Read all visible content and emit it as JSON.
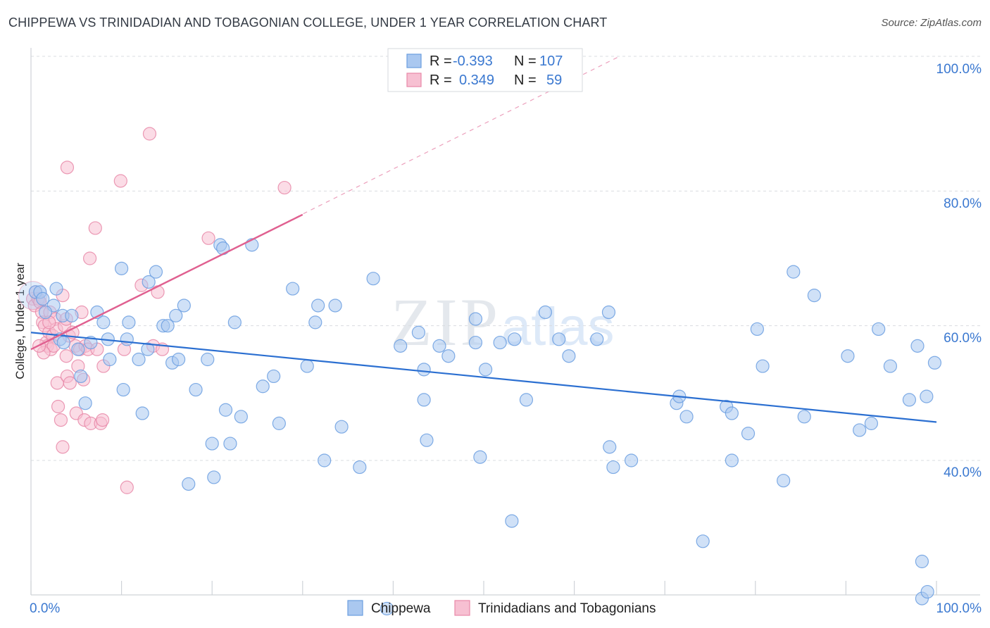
{
  "title": "CHIPPEWA VS TRINIDADIAN AND TOBAGONIAN COLLEGE, UNDER 1 YEAR CORRELATION CHART",
  "source": "Source: ZipAtlas.com",
  "watermark": {
    "zip": "ZIP",
    "atlas": "atlas"
  },
  "colors": {
    "blue": "#6a9ee0",
    "blue_fill": "#aac8f0",
    "blue_line": "#2b6fd1",
    "pink": "#e888a8",
    "pink_fill": "#f7c0d2",
    "pink_line": "#e06090",
    "accent_text": "#3a78d0"
  },
  "legend": {
    "rows": [
      {
        "r_label": "R =",
        "r_value": "-0.393",
        "n_label": "N =",
        "n_value": "107"
      },
      {
        "r_label": "R =",
        "r_value": "0.349",
        "n_label": "N =",
        "n_value": "59"
      }
    ]
  },
  "bottom_legend": [
    "Chippewa",
    "Trinidadians and Tobagonians"
  ],
  "chart_data": {
    "type": "scatter",
    "title": "CHIPPEWA VS TRINIDADIAN AND TOBAGONIAN COLLEGE, UNDER 1 YEAR CORRELATION CHART",
    "xlabel": "",
    "ylabel": "College, Under 1 year",
    "xlim": [
      0,
      100
    ],
    "ylim": [
      18,
      103
    ],
    "x_tick_labels": [
      "0.0%",
      "100.0%"
    ],
    "y_ticks": [
      40,
      60,
      80,
      100
    ],
    "y_tick_labels": [
      "40.0%",
      "60.0%",
      "80.0%",
      "100.0%"
    ],
    "grid": true,
    "series": [
      {
        "name": "Chippewa",
        "color": "blue",
        "trend": {
          "x": [
            0,
            100
          ],
          "y": [
            59.0,
            45.7
          ]
        },
        "points": [
          [
            0.5,
            65
          ],
          [
            1,
            65
          ],
          [
            1.3,
            64
          ],
          [
            2.5,
            63
          ],
          [
            2.8,
            65.5
          ],
          [
            3.2,
            58
          ],
          [
            3.5,
            61.5
          ],
          [
            4.5,
            61.5
          ],
          [
            5.2,
            56.5
          ],
          [
            5.5,
            52.5
          ],
          [
            6,
            48.5
          ],
          [
            6.6,
            57.5
          ],
          [
            7.3,
            62
          ],
          [
            8,
            60.5
          ],
          [
            8.5,
            58
          ],
          [
            8.7,
            55
          ],
          [
            10,
            68.5
          ],
          [
            10.2,
            50.5
          ],
          [
            10.6,
            58
          ],
          [
            10.8,
            60.5
          ],
          [
            11.9,
            55
          ],
          [
            12.3,
            47
          ],
          [
            12.9,
            56.5
          ],
          [
            13,
            66.5
          ],
          [
            13.8,
            68
          ],
          [
            14.6,
            60
          ],
          [
            15.1,
            60
          ],
          [
            15.6,
            54.5
          ],
          [
            16,
            61.5
          ],
          [
            16.3,
            55
          ],
          [
            16.9,
            63
          ],
          [
            17.4,
            36.5
          ],
          [
            18.2,
            50.5
          ],
          [
            19.5,
            55
          ],
          [
            20,
            42.5
          ],
          [
            20.2,
            37.5
          ],
          [
            20.9,
            72
          ],
          [
            21.2,
            71.5
          ],
          [
            21.5,
            47.5
          ],
          [
            22,
            42.5
          ],
          [
            22.5,
            60.5
          ],
          [
            23.2,
            46.5
          ],
          [
            24.4,
            72
          ],
          [
            25.6,
            51
          ],
          [
            26.8,
            52.5
          ],
          [
            27.4,
            45.5
          ],
          [
            28.9,
            65.5
          ],
          [
            30.5,
            54
          ],
          [
            31.4,
            60.5
          ],
          [
            31.7,
            63
          ],
          [
            32.4,
            40
          ],
          [
            33.6,
            63
          ],
          [
            34.3,
            45
          ],
          [
            36.3,
            39
          ],
          [
            37.8,
            67
          ],
          [
            39.3,
            18
          ],
          [
            40.8,
            57
          ],
          [
            42.8,
            59
          ],
          [
            43.4,
            49
          ],
          [
            43.4,
            53.5
          ],
          [
            43.7,
            43
          ],
          [
            45.1,
            57
          ],
          [
            46.1,
            55.5
          ],
          [
            49.1,
            61
          ],
          [
            49.1,
            57.5
          ],
          [
            49.6,
            40.5
          ],
          [
            50.2,
            53.5
          ],
          [
            51.8,
            57.5
          ],
          [
            53.1,
            31
          ],
          [
            53.4,
            58
          ],
          [
            54.7,
            49
          ],
          [
            56.8,
            62
          ],
          [
            58.3,
            58
          ],
          [
            59.4,
            55.5
          ],
          [
            62.5,
            58
          ],
          [
            63.8,
            62
          ],
          [
            63.9,
            42
          ],
          [
            64.3,
            39
          ],
          [
            66.3,
            40
          ],
          [
            71.3,
            48.5
          ],
          [
            71.6,
            49.5
          ],
          [
            72.4,
            46.5
          ],
          [
            74.2,
            28
          ],
          [
            76.8,
            48
          ],
          [
            77.4,
            40
          ],
          [
            77.4,
            47
          ],
          [
            79.2,
            44
          ],
          [
            80.2,
            59.5
          ],
          [
            80.8,
            54
          ],
          [
            83.1,
            37
          ],
          [
            84.2,
            68
          ],
          [
            85.4,
            46.5
          ],
          [
            86.5,
            64.5
          ],
          [
            90.2,
            55.5
          ],
          [
            91.5,
            44.5
          ],
          [
            92.8,
            45.5
          ],
          [
            93.6,
            59.5
          ],
          [
            94.9,
            54
          ],
          [
            97,
            49
          ],
          [
            97.9,
            57
          ],
          [
            98.4,
            25
          ],
          [
            98.9,
            49.5
          ],
          [
            99.8,
            54.5
          ],
          [
            98.4,
            19.5
          ],
          [
            99,
            20.5
          ],
          [
            1.6,
            62
          ],
          [
            3.6,
            57.5
          ]
        ]
      },
      {
        "name": "Trinidadians and Tobagonians",
        "color": "pink",
        "trend": {
          "x": [
            0,
            30
          ],
          "y": [
            56.5,
            76.5
          ]
        },
        "trend_extended": {
          "x": [
            0,
            65
          ],
          "y": [
            56.5,
            100
          ]
        },
        "points": [
          [
            0.2,
            64
          ],
          [
            0.4,
            63
          ],
          [
            0.5,
            65
          ],
          [
            0.8,
            64
          ],
          [
            1,
            63.5
          ],
          [
            1.2,
            62
          ],
          [
            1.3,
            60.5
          ],
          [
            1.5,
            60
          ],
          [
            1.7,
            57.5
          ],
          [
            1.8,
            57
          ],
          [
            2,
            59
          ],
          [
            2.1,
            62
          ],
          [
            2.2,
            56.5
          ],
          [
            2.4,
            58.5
          ],
          [
            2.5,
            57
          ],
          [
            2.7,
            61
          ],
          [
            2.8,
            59.5
          ],
          [
            2.9,
            51.5
          ],
          [
            3,
            48
          ],
          [
            3.3,
            46
          ],
          [
            3.5,
            64.5
          ],
          [
            3.7,
            60
          ],
          [
            3.9,
            61
          ],
          [
            3.9,
            55.5
          ],
          [
            4,
            52.5
          ],
          [
            4.2,
            58.5
          ],
          [
            4.3,
            51.5
          ],
          [
            4.6,
            59
          ],
          [
            4.9,
            57
          ],
          [
            5,
            47
          ],
          [
            5.2,
            54
          ],
          [
            5.4,
            56.5
          ],
          [
            5.6,
            62
          ],
          [
            5.8,
            52
          ],
          [
            5.9,
            46
          ],
          [
            6,
            57
          ],
          [
            6.3,
            56.5
          ],
          [
            6.5,
            70
          ],
          [
            6.6,
            45.5
          ],
          [
            7.1,
            74.5
          ],
          [
            7.3,
            56.5
          ],
          [
            7.7,
            45.5
          ],
          [
            7.9,
            46
          ],
          [
            8,
            54
          ],
          [
            9.9,
            81.5
          ],
          [
            10.3,
            56.5
          ],
          [
            10.6,
            36
          ],
          [
            12.2,
            66
          ],
          [
            13.1,
            88.5
          ],
          [
            13.5,
            57
          ],
          [
            14,
            65
          ],
          [
            14.5,
            56.5
          ],
          [
            19.6,
            73
          ],
          [
            28,
            80.5
          ],
          [
            4,
            83.5
          ],
          [
            3.5,
            42
          ],
          [
            2,
            60.5
          ],
          [
            1.4,
            56
          ],
          [
            0.9,
            57
          ]
        ]
      }
    ]
  }
}
